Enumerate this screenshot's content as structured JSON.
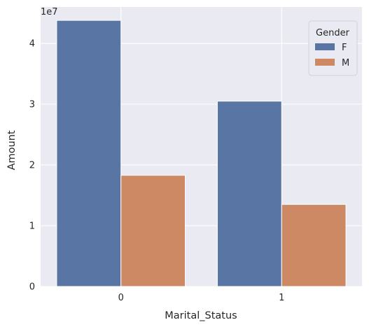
{
  "chart_data": {
    "type": "bar",
    "categories": [
      "0",
      "1"
    ],
    "series": [
      {
        "name": "F",
        "values": [
          43800000,
          30500000
        ],
        "color": "#5975a4"
      },
      {
        "name": "M",
        "values": [
          18300000,
          13500000
        ],
        "color": "#cc8963"
      }
    ],
    "xlabel": "Marital_Status",
    "ylabel": "Amount",
    "ylim": [
      0,
      46000000
    ],
    "yticks": [
      0,
      10000000,
      20000000,
      30000000,
      40000000
    ],
    "ytick_labels": [
      "0",
      "1",
      "2",
      "3",
      "4"
    ],
    "y_offset_label": "1e7",
    "legend": {
      "title": "Gender",
      "entries": [
        "F",
        "M"
      ],
      "placement": "top-right"
    },
    "grid": true,
    "background_color": "#eaeaf2",
    "grid_color": "#ffffff"
  }
}
